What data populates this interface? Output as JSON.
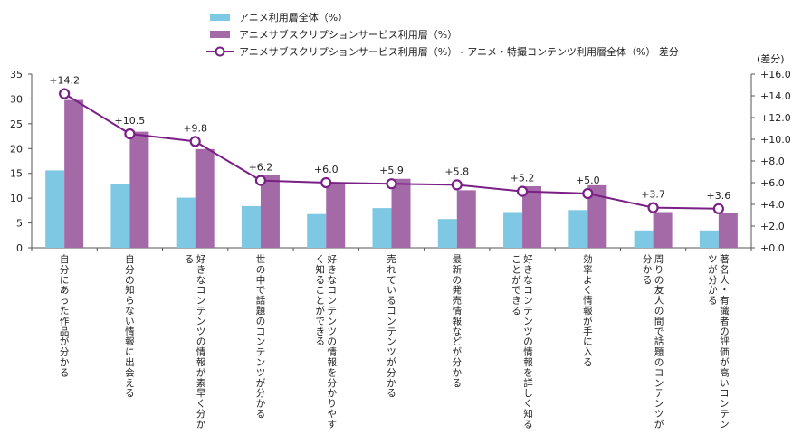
{
  "chart_data": {
    "type": "bar",
    "legend": [
      {
        "label": "アニメ利用層全体（%）",
        "kind": "bar",
        "color": "#7ec8e3"
      },
      {
        "label": "アニメサブスクリプションサービス利用層（%）",
        "kind": "bar",
        "color": "#a46aa8"
      },
      {
        "label": "アニメサブスクリプションサービス利用層（%） - アニメ・特撮コンテンツ利用層全体（%） 差分",
        "kind": "line",
        "color": "#7a1f86"
      }
    ],
    "categories": [
      [
        "自分にあった作品が分かる"
      ],
      [
        "自分の知らない情報に出会える"
      ],
      [
        "好きなコンテンツの情報が素早く分か",
        "る"
      ],
      [
        "世の中で話題のコンテンツが分かる"
      ],
      [
        "好きなコンテンツの情報を分かりやす",
        "く知ることができる"
      ],
      [
        "売れているコンテンツが分かる"
      ],
      [
        "最新の発売情報などが分かる"
      ],
      [
        "好きなコンテンツの情報を詳しく知る",
        "ことができる"
      ],
      [
        "効率よく情報が手に入る"
      ],
      [
        "周りの友人の間で話題のコンテンツが",
        "分かる"
      ],
      [
        "著名人・有識者の評価が高いコンテン",
        "ツが分かる"
      ]
    ],
    "series": [
      {
        "name": "アニメ利用層全体（%）",
        "axis": "left",
        "color": "#7ec8e3",
        "values": [
          15.6,
          12.9,
          10.1,
          8.4,
          6.8,
          8.0,
          5.8,
          7.2,
          7.6,
          3.5,
          3.5
        ]
      },
      {
        "name": "アニメサブスクリプションサービス利用層（%）",
        "axis": "left",
        "color": "#a46aa8",
        "values": [
          29.8,
          23.4,
          19.9,
          14.6,
          12.8,
          13.9,
          11.6,
          12.4,
          12.6,
          7.2,
          7.1
        ]
      },
      {
        "name": "差分",
        "axis": "right",
        "type": "line",
        "color": "#7a1f86",
        "values": [
          14.2,
          10.5,
          9.8,
          6.2,
          6.0,
          5.9,
          5.8,
          5.2,
          5.0,
          3.7,
          3.6
        ],
        "labels": [
          "+14.2",
          "+10.5",
          "+9.8",
          "+6.2",
          "+6.0",
          "+5.9",
          "+5.8",
          "+5.2",
          "+5.0",
          "+3.7",
          "+3.6"
        ]
      }
    ],
    "left_axis": {
      "min": 0,
      "max": 35,
      "step": 5,
      "ticks": [
        "0",
        "5",
        "10",
        "15",
        "20",
        "25",
        "30",
        "35"
      ]
    },
    "right_axis": {
      "min": 0,
      "max": 16,
      "step": 2,
      "title": "(差分)",
      "ticks": [
        "+0.0",
        "+2.0",
        "+4.0",
        "+6.0",
        "+8.0",
        "+10.0",
        "+12.0",
        "+14.0",
        "+16.0"
      ]
    },
    "grid": false,
    "legend_position": "top-center"
  }
}
